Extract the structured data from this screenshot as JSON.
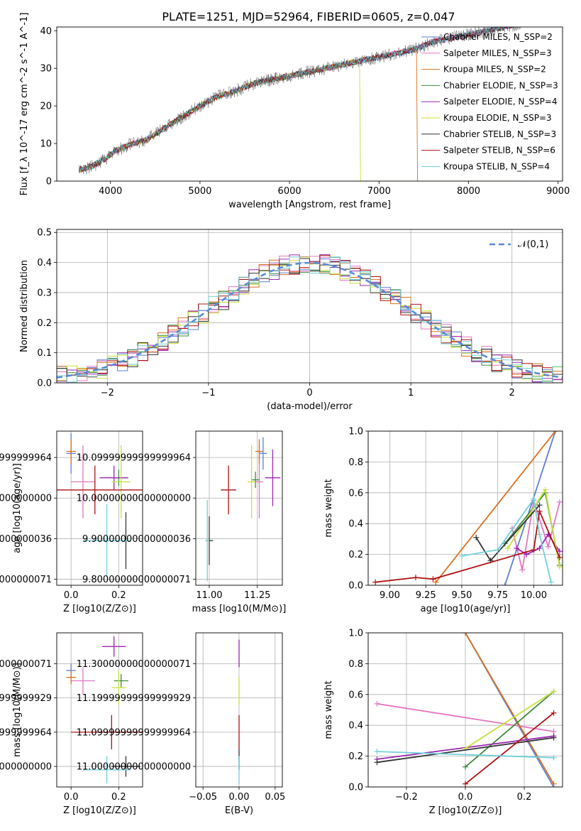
{
  "figure": {
    "title": "PLATE=1251, MJD=52964, FIBERID=0605, z=0.047"
  },
  "series_colors": {
    "Chabrier MILES": "#5b7fd6",
    "Salpeter MILES": "#e377c2",
    "Kroupa MILES": "#d9711e",
    "Chabrier ELODIE": "#3d8b3d",
    "Salpeter ELODIE": "#9b27b0",
    "Kroupa ELODIE": "#c6e03a",
    "Chabrier STELIB": "#333333",
    "Salpeter STELIB": "#b01010",
    "Kroupa STELIB": "#6fd0dc"
  },
  "chart_data": [
    {
      "id": "spectrum",
      "type": "line",
      "title": "PLATE=1251, MJD=52964, FIBERID=0605, z=0.047",
      "xlabel": "wavelength [Angstrom, rest frame]",
      "ylabel": "Flux [f_λ 10^-17 erg cm^-2 s^-1 A^-1]",
      "xlim": [
        3400,
        9050
      ],
      "ylim": [
        0,
        41
      ],
      "xticks": [
        4000,
        5000,
        6000,
        7000,
        8000,
        9000
      ],
      "yticks": [
        0,
        10,
        20,
        30,
        40
      ],
      "grid": false,
      "legend_position": "right",
      "legend": [
        "Chabrier MILES, N_SSP=2",
        "Salpeter MILES, N_SSP=3",
        "Kroupa MILES, N_SSP=2",
        "Chabrier ELODIE, N_SSP=3",
        "Salpeter ELODIE, N_SSP=4",
        "Kroupa ELODIE, N_SSP=3",
        "Chabrier STELIB, N_SSP=3",
        "Salpeter STELIB, N_SSP=6",
        "Kroupa STELIB, N_SSP=4"
      ],
      "continuum": {
        "x": [
          3650,
          3800,
          3950,
          4050,
          4200,
          4400,
          4600,
          4800,
          5000,
          5200,
          5400,
          5600,
          5800,
          6000,
          6200,
          6400,
          6600,
          6800,
          7000,
          7200,
          7400,
          7600,
          7800,
          8000,
          8200,
          8400,
          8600
        ],
        "y": [
          3,
          4,
          6,
          8,
          9.5,
          11,
          14,
          17,
          20,
          22.5,
          24,
          26,
          27,
          28,
          29,
          30,
          31,
          32,
          33,
          34,
          35,
          37,
          38,
          39,
          40,
          41,
          42
        ]
      },
      "model_cutoffs": [
        {
          "series": "Kroupa ELODIE",
          "x": 6790
        },
        {
          "series": "Kroupa MILES",
          "x": 7420
        }
      ]
    },
    {
      "id": "residuals",
      "type": "histogram",
      "xlabel": "(data-model)/error",
      "ylabel": "Normed distribution",
      "xlim": [
        -2.5,
        2.5
      ],
      "ylim": [
        0,
        0.51
      ],
      "xticks": [
        -2,
        -1,
        0,
        1,
        2
      ],
      "yticks": [
        0.0,
        0.1,
        0.2,
        0.3,
        0.4,
        0.5
      ],
      "grid": true,
      "legend_position": "top-right",
      "reference_curve": {
        "label": "𝒩(0,1)",
        "mean": 0,
        "sigma": 1
      },
      "bin_width": 0.1,
      "series": [
        {
          "name": "Chabrier MILES",
          "jitter": 1
        },
        {
          "name": "Salpeter MILES",
          "jitter": 2
        },
        {
          "name": "Kroupa MILES",
          "jitter": 3
        },
        {
          "name": "Chabrier ELODIE",
          "jitter": 4
        },
        {
          "name": "Salpeter ELODIE",
          "jitter": 5
        },
        {
          "name": "Kroupa ELODIE",
          "jitter": 6
        },
        {
          "name": "Chabrier STELIB",
          "jitter": 7
        },
        {
          "name": "Salpeter STELIB",
          "jitter": 8
        },
        {
          "name": "Kroupa STELIB",
          "jitter": 9
        }
      ]
    },
    {
      "id": "z-age",
      "type": "scatter",
      "xlabel": "Z [log10(Z/Z⊙)]",
      "ylabel": "age  [log10(age/yr)]",
      "xlim": [
        -0.06,
        0.3
      ],
      "ylim": [
        9.785,
        10.165
      ],
      "xticks": [
        0.0,
        0.2
      ],
      "yticks": [
        9.8,
        9.9,
        10.0,
        10.1
      ],
      "grid": true,
      "points": [
        {
          "series": "Chabrier MILES",
          "x": 0.0,
          "y": 10.11,
          "xerr": 0.02,
          "yerr": 0.05
        },
        {
          "series": "Salpeter MILES",
          "x": 0.05,
          "y": 10.04,
          "xerr": 0.05,
          "yerr": 0.09
        },
        {
          "series": "Kroupa MILES",
          "x": 0.0,
          "y": 10.115,
          "xerr": 0.02,
          "yerr": 0.03
        },
        {
          "series": "Chabrier ELODIE",
          "x": 0.2,
          "y": 10.05,
          "xerr": 0.03,
          "yerr": 0.02
        },
        {
          "series": "Salpeter ELODIE",
          "x": 0.18,
          "y": 10.05,
          "xerr": 0.06,
          "yerr": 0.03
        },
        {
          "series": "Kroupa ELODIE",
          "x": 0.21,
          "y": 10.04,
          "xerr": 0.04,
          "yerr": 0.09
        },
        {
          "series": "Chabrier STELIB",
          "x": 0.23,
          "y": 9.895,
          "xerr": 0.02,
          "yerr": 0.07
        },
        {
          "series": "Salpeter STELIB",
          "x": 0.1,
          "y": 10.02,
          "xerr": 0.2,
          "yerr": 0.06
        },
        {
          "series": "Kroupa STELIB",
          "x": 0.15,
          "y": 9.895,
          "xerr": 0.1,
          "yerr": 0.09
        }
      ]
    },
    {
      "id": "mass-age",
      "type": "scatter",
      "xlabel": "mass [log10(M/M⊙)]",
      "ylabel": "",
      "xlim": [
        10.93,
        11.38
      ],
      "ylim": [
        9.785,
        10.165
      ],
      "xticks": [
        11.0,
        11.25
      ],
      "yticks": [
        9.8,
        9.9,
        10.0,
        10.1
      ],
      "grid": true,
      "points": [
        {
          "series": "Chabrier MILES",
          "x": 11.28,
          "y": 10.11,
          "xerr": 0.02,
          "yerr": 0.04
        },
        {
          "series": "Salpeter MILES",
          "x": 11.26,
          "y": 10.04,
          "xerr": 0.02,
          "yerr": 0.09
        },
        {
          "series": "Kroupa MILES",
          "x": 11.26,
          "y": 10.115,
          "xerr": 0.02,
          "yerr": 0.03
        },
        {
          "series": "Chabrier ELODIE",
          "x": 11.24,
          "y": 10.045,
          "xerr": 0.02,
          "yerr": 0.02
        },
        {
          "series": "Salpeter ELODIE",
          "x": 11.33,
          "y": 10.05,
          "xerr": 0.04,
          "yerr": 0.07
        },
        {
          "series": "Kroupa ELODIE",
          "x": 11.22,
          "y": 10.04,
          "xerr": 0.02,
          "yerr": 0.09
        },
        {
          "series": "Chabrier STELIB",
          "x": 11.0,
          "y": 9.895,
          "xerr": 0.02,
          "yerr": 0.06
        },
        {
          "series": "Salpeter STELIB",
          "x": 11.1,
          "y": 10.02,
          "xerr": 0.04,
          "yerr": 0.06
        },
        {
          "series": "Kroupa STELIB",
          "x": 10.99,
          "y": 9.895,
          "xerr": 0.01,
          "yerr": 0.1
        }
      ]
    },
    {
      "id": "age-weight",
      "type": "line",
      "xlabel": "age  [log10(age/yr)]",
      "ylabel": "mass weight",
      "xlim": [
        8.85,
        10.2
      ],
      "ylim": [
        0,
        1
      ],
      "xticks": [
        9.0,
        9.25,
        9.5,
        9.75,
        10.0
      ],
      "yticks": [
        0.0,
        0.2,
        0.4,
        0.6,
        0.8,
        1.0
      ],
      "grid": true,
      "series": [
        {
          "name": "Chabrier MILES",
          "x": [
            9.8,
            10.15
          ],
          "y": [
            0.0,
            1.0
          ]
        },
        {
          "name": "Salpeter MILES",
          "x": [
            9.85,
            9.92,
            10.0,
            10.1,
            10.18
          ],
          "y": [
            0.37,
            0.1,
            0.55,
            0.25,
            0.54
          ]
        },
        {
          "name": "Kroupa MILES",
          "x": [
            9.32,
            10.15
          ],
          "y": [
            0.02,
            1.0
          ]
        },
        {
          "name": "Chabrier ELODIE",
          "x": [
            9.8,
            10.08,
            10.18
          ],
          "y": [
            0.27,
            0.6,
            0.13
          ]
        },
        {
          "name": "Salpeter ELODIE",
          "x": [
            9.88,
            9.95,
            10.04,
            10.1,
            10.18
          ],
          "y": [
            0.24,
            0.2,
            0.24,
            0.33,
            0.22
          ]
        },
        {
          "name": "Kroupa ELODIE",
          "x": [
            9.82,
            10.08,
            10.18
          ],
          "y": [
            0.24,
            0.62,
            0.12
          ]
        },
        {
          "name": "Chabrier STELIB",
          "x": [
            9.6,
            9.7,
            10.04
          ],
          "y": [
            0.31,
            0.16,
            0.52
          ]
        },
        {
          "name": "Salpeter STELIB",
          "x": [
            8.9,
            9.18,
            9.3,
            10.0,
            10.04,
            10.18
          ],
          "y": [
            0.02,
            0.05,
            0.04,
            0.23,
            0.48,
            0.18
          ]
        },
        {
          "name": "Kroupa STELIB",
          "x": [
            9.5,
            9.75,
            10.0,
            10.04,
            10.12
          ],
          "y": [
            0.19,
            0.23,
            0.56,
            0.33,
            0.02
          ]
        }
      ]
    },
    {
      "id": "z-mass",
      "type": "scatter",
      "xlabel": "Z [log10(Z/Z⊙)]",
      "ylabel": "mass [log10(M/M⊙)]",
      "xlim": [
        -0.06,
        0.3
      ],
      "ylim": [
        10.94,
        11.39
      ],
      "xticks": [
        0.0,
        0.2
      ],
      "yticks": [
        11.0,
        11.1,
        11.2,
        11.3
      ],
      "grid": true,
      "points": [
        {
          "series": "Chabrier MILES",
          "x": 0.0,
          "y": 11.28,
          "xerr": 0.02,
          "yerr": 0.02
        },
        {
          "series": "Salpeter MILES",
          "x": 0.05,
          "y": 11.25,
          "xerr": 0.05,
          "yerr": 0.04
        },
        {
          "series": "Kroupa MILES",
          "x": 0.0,
          "y": 11.26,
          "xerr": 0.02,
          "yerr": 0.02
        },
        {
          "series": "Chabrier ELODIE",
          "x": 0.21,
          "y": 11.25,
          "xerr": 0.03,
          "yerr": 0.02
        },
        {
          "series": "Salpeter ELODIE",
          "x": 0.18,
          "y": 11.35,
          "xerr": 0.05,
          "yerr": 0.03
        },
        {
          "series": "Kroupa ELODIE",
          "x": 0.2,
          "y": 11.23,
          "xerr": 0.03,
          "yerr": 0.05
        },
        {
          "series": "Chabrier STELIB",
          "x": 0.23,
          "y": 11.0,
          "xerr": 0.06,
          "yerr": 0.03
        },
        {
          "series": "Salpeter STELIB",
          "x": 0.17,
          "y": 11.1,
          "xerr": 0.17,
          "yerr": 0.05
        },
        {
          "series": "Kroupa STELIB",
          "x": 0.15,
          "y": 10.99,
          "xerr": 0.1,
          "yerr": 0.04
        }
      ]
    },
    {
      "id": "ebv-mass",
      "type": "scatter",
      "xlabel": "E(B-V)",
      "ylabel": "",
      "xlim": [
        -0.06,
        0.06
      ],
      "ylim": [
        10.94,
        11.39
      ],
      "xticks": [
        -0.05,
        0.0,
        0.05
      ],
      "yticks": [
        11.0,
        11.1,
        11.2,
        11.3
      ],
      "grid": true,
      "points": [
        {
          "series": "Salpeter ELODIE",
          "x": 0.0,
          "y": 11.33,
          "xerr": 0.0,
          "yerr": 0.04
        },
        {
          "series": "Kroupa ELODIE",
          "x": 0.0,
          "y": 11.22,
          "xerr": 0.0,
          "yerr": 0.04
        },
        {
          "series": "Salpeter STELIB",
          "x": 0.0,
          "y": 11.1,
          "xerr": 0.0,
          "yerr": 0.05
        },
        {
          "series": "Chabrier STELIB",
          "x": 0.0,
          "y": 11.02,
          "xerr": 0.0,
          "yerr": 0.03
        },
        {
          "series": "Kroupa STELIB",
          "x": 0.0,
          "y": 10.99,
          "xerr": 0.0,
          "yerr": 0.04
        }
      ]
    },
    {
      "id": "z-weight",
      "type": "line",
      "xlabel": "Z [log10(Z/Z⊙)]",
      "ylabel": "mass weight",
      "xlim": [
        -0.33,
        0.33
      ],
      "ylim": [
        0,
        1
      ],
      "xticks": [
        -0.2,
        0.0,
        0.2
      ],
      "yticks": [
        0.0,
        0.2,
        0.4,
        0.6,
        0.8,
        1.0
      ],
      "grid": true,
      "series": [
        {
          "name": "Chabrier MILES",
          "x": [
            0.0,
            0.3
          ],
          "y": [
            1.0,
            0.0
          ]
        },
        {
          "name": "Salpeter MILES",
          "x": [
            -0.3,
            0.3
          ],
          "y": [
            0.54,
            0.36
          ]
        },
        {
          "name": "Kroupa MILES",
          "x": [
            0.0,
            0.3
          ],
          "y": [
            1.0,
            0.02
          ]
        },
        {
          "name": "Chabrier ELODIE",
          "x": [
            0.0,
            0.3
          ],
          "y": [
            0.13,
            0.62
          ]
        },
        {
          "name": "Salpeter ELODIE",
          "x": [
            -0.3,
            0.3
          ],
          "y": [
            0.18,
            0.33
          ]
        },
        {
          "name": "Kroupa ELODIE",
          "x": [
            0.0,
            0.3
          ],
          "y": [
            0.25,
            0.62
          ]
        },
        {
          "name": "Chabrier STELIB",
          "x": [
            -0.3,
            0.3
          ],
          "y": [
            0.16,
            0.32
          ]
        },
        {
          "name": "Salpeter STELIB",
          "x": [
            0.0,
            0.3
          ],
          "y": [
            0.02,
            0.48
          ]
        },
        {
          "name": "Kroupa STELIB",
          "x": [
            -0.3,
            0.3
          ],
          "y": [
            0.23,
            0.19
          ]
        }
      ]
    }
  ]
}
